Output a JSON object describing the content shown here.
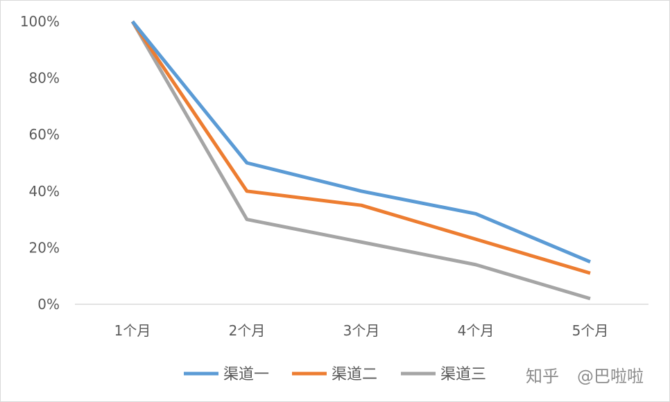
{
  "chart_data": {
    "type": "line",
    "title": "",
    "xlabel": "",
    "ylabel": "",
    "categories": [
      "1个月",
      "2个月",
      "3个月",
      "4个月",
      "5个月"
    ],
    "ylim": [
      0,
      100
    ],
    "yticks": [
      "0%",
      "20%",
      "40%",
      "60%",
      "80%",
      "100%"
    ],
    "grid": false,
    "legend_position": "bottom",
    "series": [
      {
        "name": "渠道一",
        "color": "#5b9bd5",
        "values": [
          100,
          50,
          40,
          32,
          15
        ]
      },
      {
        "name": "渠道二",
        "color": "#ed7d31",
        "values": [
          100,
          40,
          35,
          23,
          11
        ]
      },
      {
        "name": "渠道三",
        "color": "#a5a5a5",
        "values": [
          100,
          30,
          22,
          14,
          2
        ]
      }
    ]
  },
  "watermark": {
    "site": "知乎",
    "author": "@巴啦啦"
  }
}
